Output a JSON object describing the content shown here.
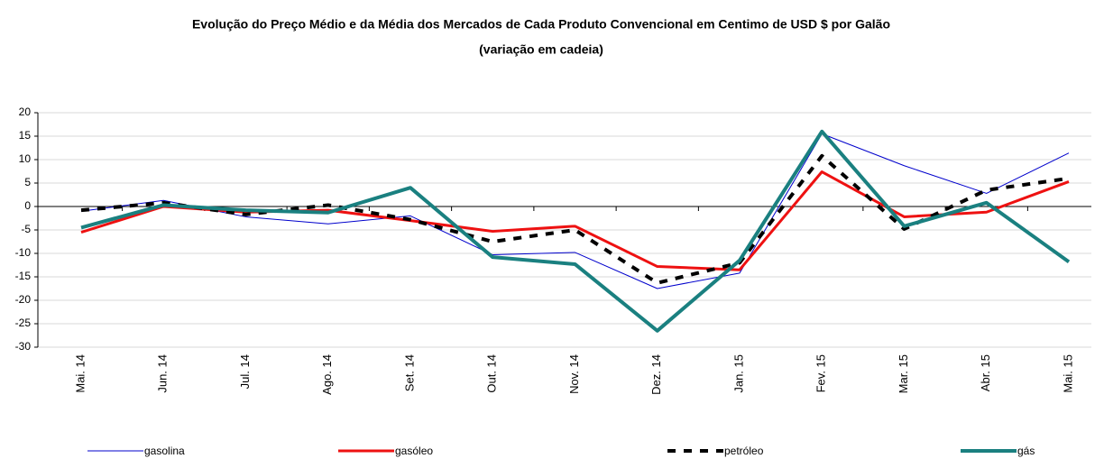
{
  "chart_data": {
    "type": "line",
    "title": "Evolução do Preço Médio e da Média dos Mercados de Cada Produto Convencional em Centimo de USD $ por Galão",
    "subtitle": "(variação em cadeia)",
    "categories": [
      "Mai. 14",
      "Jun. 14",
      "Jul. 14",
      "Ago. 14",
      "Set. 14",
      "Out. 14",
      "Nov. 14",
      "Dez. 14",
      "Jan. 15",
      "Fev. 15",
      "Mar. 15",
      "Abr. 15",
      "Mai. 15"
    ],
    "series": [
      {
        "name": "gasolina",
        "color": "#0000cc",
        "width": 1,
        "dash": "none",
        "values": [
          -1,
          1.3,
          -2.2,
          -3.7,
          -2,
          -10.3,
          -9.8,
          -17.5,
          -14.2,
          15.5,
          8.7,
          2.8,
          11.4
        ]
      },
      {
        "name": "gasóleo",
        "color": "#ee1111",
        "width": 3,
        "dash": "none",
        "values": [
          -5.5,
          0,
          -1.2,
          -0.8,
          -3,
          -5.3,
          -4.2,
          -12.8,
          -13.5,
          7.4,
          -2.2,
          -1.2,
          5.3
        ]
      },
      {
        "name": "petróleo",
        "color": "#000000",
        "width": 4,
        "dash": "9,9",
        "values": [
          -0.8,
          0.8,
          -1.7,
          0.3,
          -2.8,
          -7.5,
          -5,
          -16.3,
          -12,
          10.8,
          -4.8,
          3.5,
          6
        ]
      },
      {
        "name": "gás",
        "color": "#1a8080",
        "width": 4,
        "dash": "none",
        "values": [
          -4.5,
          0.3,
          -0.8,
          -1.3,
          4,
          -10.8,
          -12.3,
          -26.5,
          -11.5,
          16,
          -4.2,
          0.8,
          -11.8
        ]
      }
    ],
    "ylim": [
      -30,
      20
    ],
    "yticks": [
      -30,
      -25,
      -20,
      -15,
      -10,
      -5,
      0,
      5,
      10,
      15,
      20
    ],
    "grid": true
  }
}
